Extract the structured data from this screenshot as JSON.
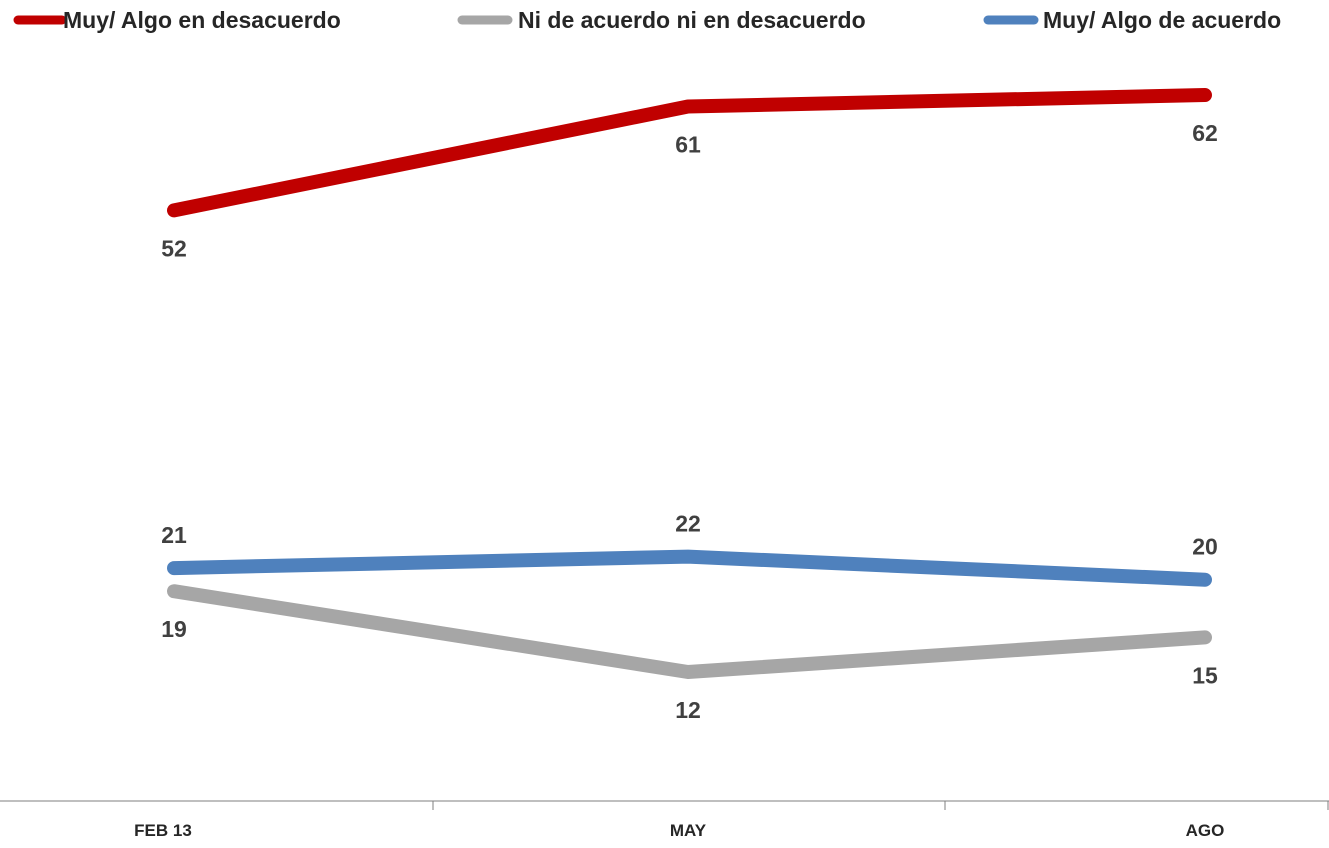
{
  "chart_data": {
    "type": "line",
    "categories": [
      "FEB 13",
      "MAY",
      "AGO"
    ],
    "series": [
      {
        "name": "Muy/ Algo en desacuerdo",
        "values": [
          52,
          61,
          62
        ],
        "color": "#C00000",
        "label_side": [
          "below",
          "below",
          "below"
        ]
      },
      {
        "name": "Ni de acuerdo ni en desacuerdo",
        "values": [
          19,
          12,
          15
        ],
        "color": "#A6A6A6",
        "label_side": [
          "below",
          "below",
          "below"
        ]
      },
      {
        "name": "Muy/ Algo de acuerdo",
        "values": [
          21,
          22,
          20
        ],
        "color": "#4F81BD",
        "label_side": [
          "above",
          "above",
          "above"
        ]
      }
    ],
    "legend_position": "top",
    "grid": false
  }
}
